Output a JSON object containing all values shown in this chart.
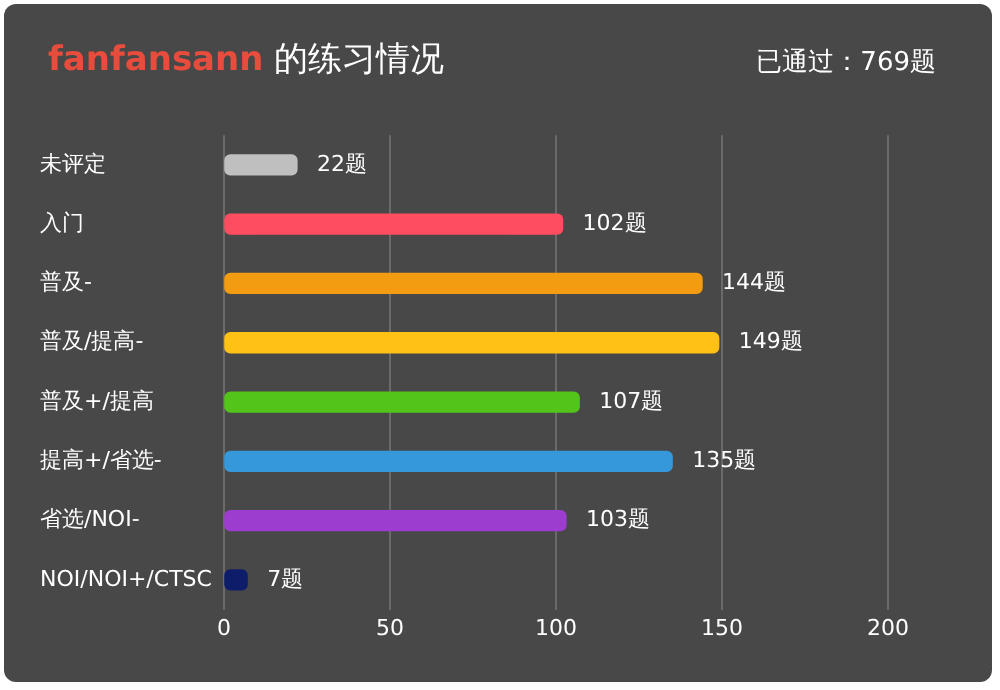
{
  "chart_data": {
    "type": "bar",
    "orientation": "horizontal",
    "title": "fanfansann 的练习情况",
    "subtitle": "已通过：769题",
    "categories": [
      "未评定",
      "入门",
      "普及-",
      "普及/提高-",
      "普及+/提高",
      "提高+/省选-",
      "省选/NOI-",
      "NOI/NOI+/CTSC"
    ],
    "values": [
      22,
      102,
      144,
      149,
      107,
      135,
      103,
      7
    ],
    "colors": [
      "#bfbfbf",
      "#fe4c61",
      "#f39c11",
      "#ffc116",
      "#52c41a",
      "#3498db",
      "#9d3dcf",
      "#0e1d69"
    ],
    "value_labels": [
      "22题",
      "102题",
      "144题",
      "149题",
      "107题",
      "135题",
      "103题",
      "7题"
    ],
    "xlim": [
      0,
      200
    ],
    "xticks": [
      0,
      50,
      100,
      150,
      200
    ],
    "grid": "x"
  }
}
